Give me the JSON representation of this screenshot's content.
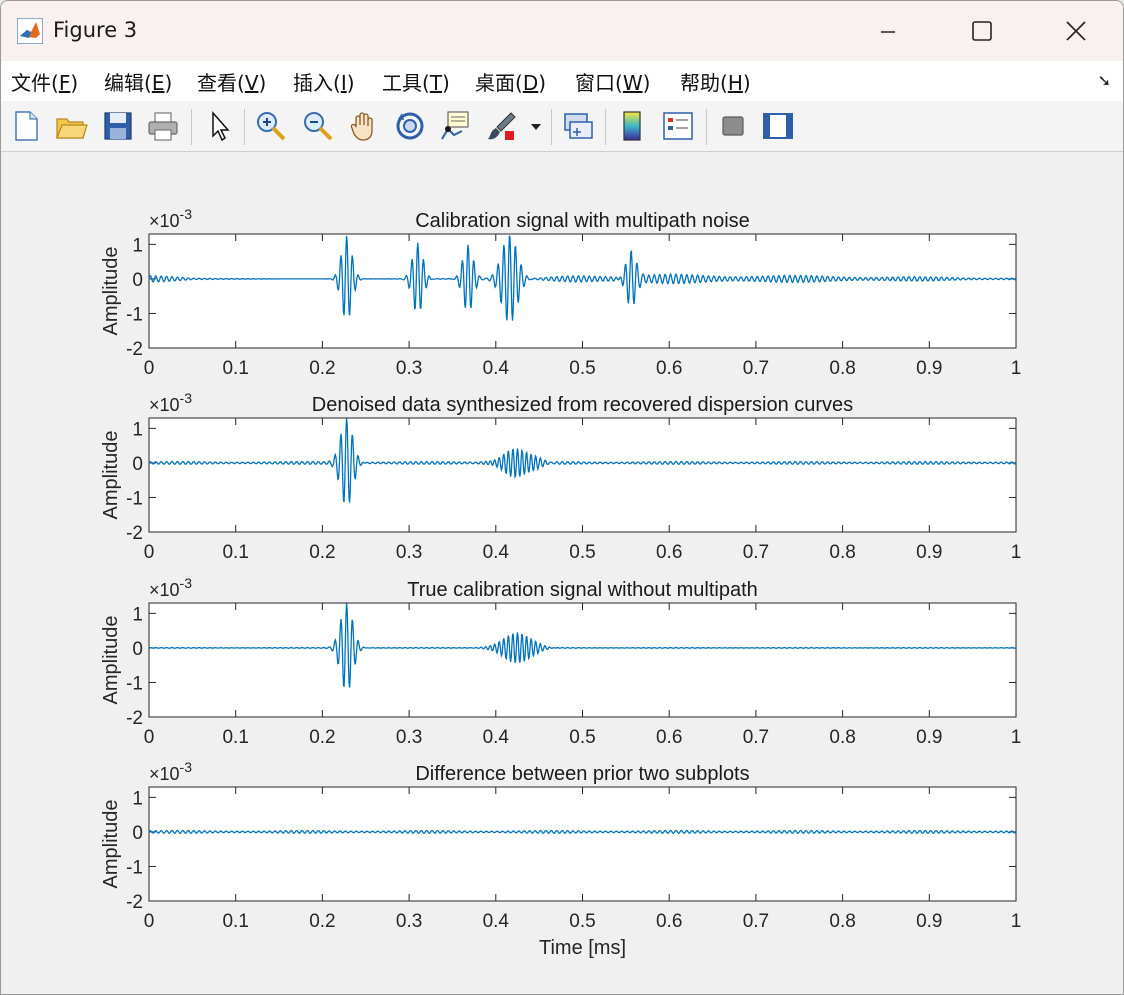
{
  "window": {
    "title": "Figure 3",
    "minimize_label": "—",
    "maximize_label": "☐",
    "close_label": "✕"
  },
  "menu": [
    {
      "label": "文件(",
      "key": "F",
      "tail": ")"
    },
    {
      "label": "编辑(",
      "key": "E",
      "tail": ")"
    },
    {
      "label": "查看(",
      "key": "V",
      "tail": ")"
    },
    {
      "label": "插入(",
      "key": "I",
      "tail": ")"
    },
    {
      "label": "工具(",
      "key": "T",
      "tail": ")"
    },
    {
      "label": "桌面(",
      "key": "D",
      "tail": ")"
    },
    {
      "label": "窗口(",
      "key": "W",
      "tail": ")"
    },
    {
      "label": "帮助(",
      "key": "H",
      "tail": ")"
    }
  ],
  "toolbar": {
    "icons": [
      "new-figure-icon",
      "open-file-icon",
      "save-icon",
      "print-icon",
      "edit-plot-icon",
      "zoom-in-icon",
      "zoom-out-icon",
      "pan-icon",
      "rotate-3d-icon",
      "data-cursor-icon",
      "brush-icon",
      "brush-dropdown-icon",
      "link-plot-icon",
      "colorbar-icon",
      "legend-icon",
      "hide-plot-tools-icon",
      "show-plot-tools-icon"
    ]
  },
  "colors": {
    "line": "#0072BD",
    "axes_bg": "#ffffff",
    "figure_bg": "#f0f0f0"
  },
  "chart_data": [
    {
      "type": "line",
      "title": "Calibration signal with multipath noise",
      "xlabel": "",
      "ylabel": "Amplitude",
      "exponent_label": "×10",
      "exponent_power": "-3",
      "xlim": [
        0,
        1
      ],
      "ylim": [
        -2,
        1.3
      ],
      "xticks": [
        "0",
        "0.1",
        "0.2",
        "0.3",
        "0.4",
        "0.5",
        "0.6",
        "0.7",
        "0.8",
        "0.9",
        "1"
      ],
      "yticks": [
        "1",
        "0",
        "-1",
        "-2"
      ],
      "ytick_values": [
        1,
        0,
        -1,
        -2
      ],
      "series": [
        {
          "background": [
            0.12,
            0.02,
            0.02,
            0.0,
            0.0,
            0.0,
            0.01,
            0.01,
            0.02,
            0.03,
            0.12,
            0.13,
            0.14,
            0.12,
            0.12,
            0.1,
            0.09,
            0.07,
            0.06,
            0.04,
            0.03
          ],
          "bursts": [
            {
              "t": 0.228,
              "amp": 1.25,
              "f": 150,
              "w": 0.006
            },
            {
              "t": 0.31,
              "amp": 1.05,
              "f": 150,
              "w": 0.006
            },
            {
              "t": 0.368,
              "amp": 1.0,
              "f": 150,
              "w": 0.006
            },
            {
              "t": 0.416,
              "amp": 1.3,
              "f": 150,
              "w": 0.009
            },
            {
              "t": 0.556,
              "amp": 0.85,
              "f": 150,
              "w": 0.006
            }
          ]
        }
      ]
    },
    {
      "type": "line",
      "title": "Denoised data synthesized from recovered dispersion curves",
      "xlabel": "",
      "ylabel": "Amplitude",
      "exponent_label": "×10",
      "exponent_power": "-3",
      "xlim": [
        0,
        1
      ],
      "ylim": [
        -2,
        1.3
      ],
      "xticks": [
        "0",
        "0.1",
        "0.2",
        "0.3",
        "0.4",
        "0.5",
        "0.6",
        "0.7",
        "0.8",
        "0.9",
        "1"
      ],
      "yticks": [
        "1",
        "0",
        "-1",
        "-2"
      ],
      "ytick_values": [
        1,
        0,
        -1,
        -2
      ],
      "series": [
        {
          "background": [
            0.04,
            0.04,
            0.04,
            0.04,
            0.04,
            0.04,
            0.04,
            0.04,
            0.04,
            0.04,
            0.04,
            0.04,
            0.04,
            0.04,
            0.04,
            0.04,
            0.04,
            0.04,
            0.04,
            0.04,
            0.04
          ],
          "bursts": [
            {
              "t": 0.228,
              "amp": 1.3,
              "f": 150,
              "w": 0.007
            },
            {
              "t": 0.425,
              "amp": 0.42,
              "f": 190,
              "w": 0.016
            }
          ]
        }
      ]
    },
    {
      "type": "line",
      "title": "True calibration signal without multipath",
      "xlabel": "",
      "ylabel": "Amplitude",
      "exponent_label": "×10",
      "exponent_power": "-3",
      "xlim": [
        0,
        1
      ],
      "ylim": [
        -2,
        1.3
      ],
      "xticks": [
        "0",
        "0.1",
        "0.2",
        "0.3",
        "0.4",
        "0.5",
        "0.6",
        "0.7",
        "0.8",
        "0.9",
        "1"
      ],
      "yticks": [
        "1",
        "0",
        "-1",
        "-2"
      ],
      "ytick_values": [
        1,
        0,
        -1,
        -2
      ],
      "series": [
        {
          "background": [
            0.01,
            0.01,
            0.01,
            0.01,
            0.01,
            0.01,
            0.01,
            0.01,
            0.01,
            0.01,
            0.01,
            0.01,
            0.01,
            0.01,
            0.01,
            0.01,
            0.01,
            0.01,
            0.01,
            0.01,
            0.01
          ],
          "bursts": [
            {
              "t": 0.228,
              "amp": 1.3,
              "f": 150,
              "w": 0.007
            },
            {
              "t": 0.425,
              "amp": 0.45,
              "f": 190,
              "w": 0.016
            }
          ]
        }
      ]
    },
    {
      "type": "line",
      "title": "Difference between prior two subplots",
      "xlabel": "Time [ms]",
      "ylabel": "Amplitude",
      "exponent_label": "×10",
      "exponent_power": "-3",
      "xlim": [
        0,
        1
      ],
      "ylim": [
        -2,
        1.3
      ],
      "xticks": [
        "0",
        "0.1",
        "0.2",
        "0.3",
        "0.4",
        "0.5",
        "0.6",
        "0.7",
        "0.8",
        "0.9",
        "1"
      ],
      "yticks": [
        "1",
        "0",
        "-1",
        "-2"
      ],
      "ytick_values": [
        1,
        0,
        -1,
        -2
      ],
      "series": [
        {
          "background": [
            0.04,
            0.04,
            0.04,
            0.04,
            0.04,
            0.04,
            0.04,
            0.04,
            0.04,
            0.04,
            0.04,
            0.04,
            0.04,
            0.04,
            0.04,
            0.04,
            0.04,
            0.04,
            0.04,
            0.04,
            0.04
          ],
          "bursts": []
        }
      ]
    }
  ]
}
